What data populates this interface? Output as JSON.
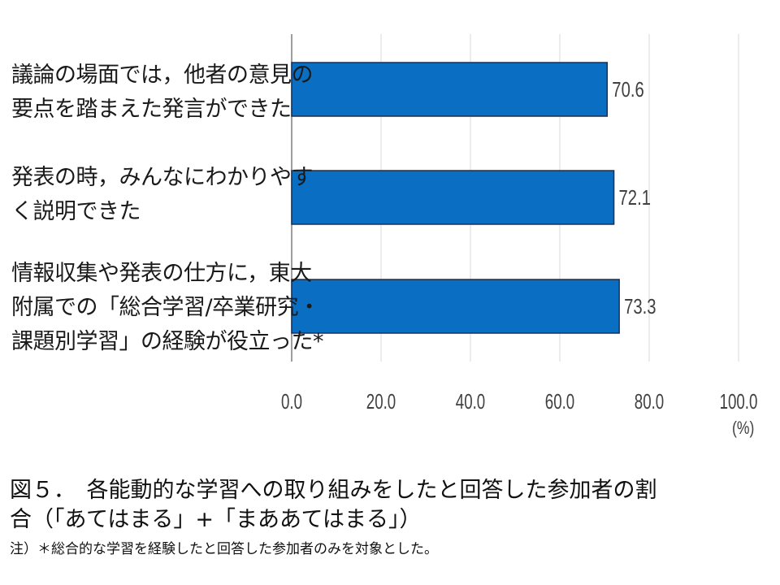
{
  "chart_data": {
    "type": "bar",
    "orientation": "horizontal",
    "categories": [
      [
        "議論の場面では，他者の意見の",
        "要点を踏まえた発言ができた"
      ],
      [
        "発表の時，みんなにわかりやす",
        "く説明できた"
      ],
      [
        "情報収集や発表の仕方に，東大",
        "附属での「総合学習/卒業研究・",
        "課題別学習」の経験が役立った*"
      ]
    ],
    "values": [
      70.6,
      72.1,
      73.3
    ],
    "value_labels": [
      "70.6",
      "72.1",
      "73.3"
    ],
    "xlim": [
      0,
      100
    ],
    "ticks": [
      "0.0",
      "20.0",
      "40.0",
      "60.0",
      "80.0",
      "100.0"
    ],
    "unit": "(%)",
    "grid": true,
    "bar_color": "#0a6fc2",
    "bar_edge_color": "#1f2f4a"
  },
  "caption": {
    "title_line1": "図５．　各能動的な学習への取り組みをしたと回答した参加者の割",
    "title_line2": "合（「あてはまる」+「まああてはまる」）",
    "note": "注）＊総合的な学習を経験したと回答した参加者のみを対象とした。"
  }
}
